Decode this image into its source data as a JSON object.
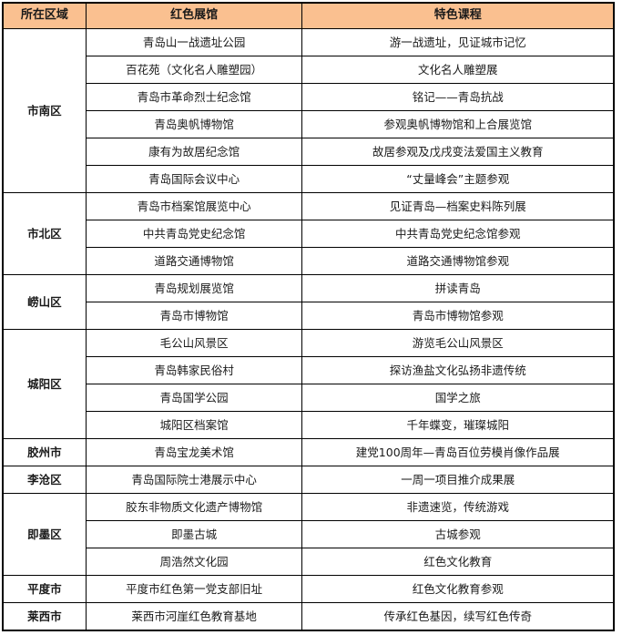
{
  "colors": {
    "header_bg": "#FAC090",
    "border": "#000000",
    "text": "#1a1a1a",
    "cell_bg": "#ffffff"
  },
  "table": {
    "headers": [
      "所在区域",
      "红色展馆",
      "特色课程"
    ],
    "groups": [
      {
        "district": "市南区",
        "rows": [
          {
            "museum": "青岛山一战遗址公园",
            "course": "游一战遗址，见证城市记忆"
          },
          {
            "museum": "百花苑（文化名人雕塑园）",
            "course": "文化名人雕塑展"
          },
          {
            "museum": "青岛市革命烈士纪念馆",
            "course": "铭记——青岛抗战"
          },
          {
            "museum": "青岛奥帆博物馆",
            "course": "参观奥帆博物馆和上合展览馆"
          },
          {
            "museum": "康有为故居纪念馆",
            "course": "故居参观及戊戌变法爱国主义教育"
          },
          {
            "museum": "青岛国际会议中心",
            "course": "“丈量峰会”主题参观"
          }
        ]
      },
      {
        "district": "市北区",
        "rows": [
          {
            "museum": "青岛市档案馆展览中心",
            "course": "见证青岛—档案史料陈列展"
          },
          {
            "museum": "中共青岛党史纪念馆",
            "course": "中共青岛党史纪念馆参观"
          },
          {
            "museum": "道路交通博物馆",
            "course": "道路交通博物馆参观"
          }
        ]
      },
      {
        "district": "崂山区",
        "rows": [
          {
            "museum": "青岛规划展览馆",
            "course": "拼读青岛"
          },
          {
            "museum": "青岛市博物馆",
            "course": "青岛市博物馆参观"
          }
        ]
      },
      {
        "district": "城阳区",
        "rows": [
          {
            "museum": "毛公山风景区",
            "course": "游览毛公山风景区"
          },
          {
            "museum": "青岛韩家民俗村",
            "course": "探访渔盐文化弘扬非遗传统"
          },
          {
            "museum": "青岛国学公园",
            "course": "国学之旅"
          },
          {
            "museum": "城阳区档案馆",
            "course": "千年蝶变，璀璨城阳"
          }
        ]
      },
      {
        "district": "胶州市",
        "rows": [
          {
            "museum": "青岛宝龙美术馆",
            "course": "建党100周年—青岛百位劳模肖像作品展"
          }
        ]
      },
      {
        "district": "李沧区",
        "rows": [
          {
            "museum": "青岛国际院士港展示中心",
            "course": "一周一项目推介成果展"
          }
        ]
      },
      {
        "district": "即墨区",
        "rows": [
          {
            "museum": "胶东非物质文化遗产博物馆",
            "course": "非遗速览，传统游戏"
          },
          {
            "museum": "即墨古城",
            "course": "古城参观"
          },
          {
            "museum": "周浩然文化园",
            "course": "红色文化教育"
          }
        ]
      },
      {
        "district": "平度市",
        "rows": [
          {
            "museum": "平度市红色第一党支部旧址",
            "course": "红色文化教育参观"
          }
        ]
      },
      {
        "district": "莱西市",
        "rows": [
          {
            "museum": "莱西市河崖红色教育基地",
            "course": "传承红色基因，续写红色传奇"
          }
        ]
      }
    ]
  }
}
